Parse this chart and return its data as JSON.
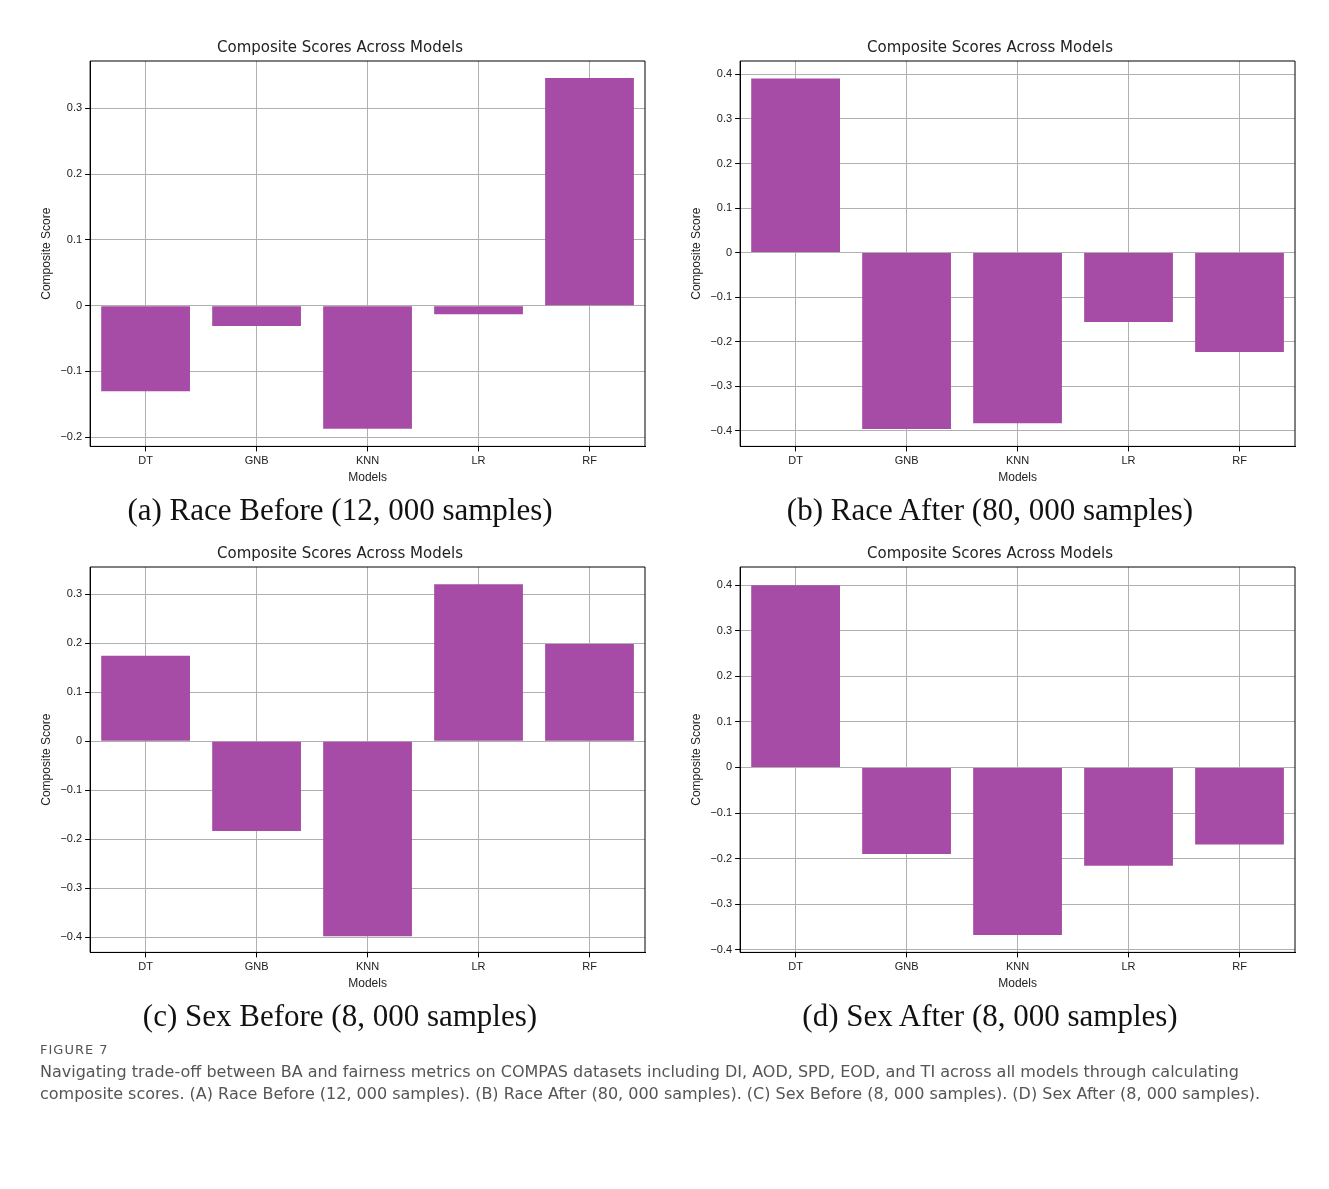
{
  "chart_data": [
    {
      "type": "bar",
      "title": "Composite Scores Across Models",
      "xlabel": "Models",
      "ylabel": "Composite Score",
      "categories": [
        "DT",
        "GNB",
        "KNN",
        "LR",
        "RF"
      ],
      "values": [
        -0.13,
        -0.031,
        -0.187,
        -0.013,
        0.346
      ],
      "color": "#a64ca6",
      "ylim": [
        -0.214,
        0.372
      ],
      "yticks": [
        {
          "value": -0.2,
          "label": "−0.2"
        },
        {
          "value": -0.1,
          "label": "−0.1"
        },
        0.0,
        0.1,
        0.2,
        0.3
      ],
      "grid": true,
      "annotations": [
        "(a) Race Before (12, 000 samples)"
      ]
    },
    {
      "type": "bar",
      "title": "Composite Scores Across Models",
      "xlabel": "Models",
      "ylabel": "Composite Score",
      "categories": [
        "DT",
        "GNB",
        "KNN",
        "LR",
        "RF"
      ],
      "values": [
        0.391,
        -0.396,
        -0.383,
        -0.156,
        -0.223
      ],
      "color": "#a64ca6",
      "ylim": [
        -0.435,
        0.43
      ],
      "yticks": [
        {
          "value": -0.4,
          "label": "−0.4"
        },
        {
          "value": -0.3,
          "label": "−0.3"
        },
        {
          "value": -0.2,
          "label": "−0.2"
        },
        {
          "value": -0.1,
          "label": "−0.1"
        },
        0.0,
        0.1,
        0.2,
        0.3,
        0.4
      ],
      "grid": true,
      "annotations": [
        "(b) Race After (80, 000 samples)"
      ]
    },
    {
      "type": "bar",
      "title": "Composite Scores Across Models",
      "xlabel": "Models",
      "ylabel": "Composite Score",
      "categories": [
        "DT",
        "GNB",
        "KNN",
        "LR",
        "RF"
      ],
      "values": [
        0.175,
        -0.183,
        -0.398,
        0.321,
        0.199
      ],
      "color": "#a64ca6",
      "ylim": [
        -0.431,
        0.356
      ],
      "yticks": [
        {
          "value": -0.4,
          "label": "−0.4"
        },
        {
          "value": -0.3,
          "label": "−0.3"
        },
        {
          "value": -0.2,
          "label": "−0.2"
        },
        {
          "value": -0.1,
          "label": "−0.1"
        },
        0.0,
        0.1,
        0.2,
        0.3
      ],
      "grid": true,
      "annotations": [
        "(c) Sex Before (8, 000 samples)"
      ]
    },
    {
      "type": "bar",
      "title": "Composite Scores Across Models",
      "xlabel": "Models",
      "ylabel": "Composite Score",
      "categories": [
        "DT",
        "GNB",
        "KNN",
        "LR",
        "RF"
      ],
      "values": [
        0.4,
        -0.19,
        -0.368,
        -0.216,
        -0.169
      ],
      "color": "#a64ca6",
      "ylim": [
        -0.406,
        0.44
      ],
      "yticks": [
        {
          "value": -0.4,
          "label": "−0.4"
        },
        {
          "value": -0.3,
          "label": "−0.3"
        },
        {
          "value": -0.2,
          "label": "−0.2"
        },
        {
          "value": -0.1,
          "label": "−0.1"
        },
        0.0,
        0.1,
        0.2,
        0.3,
        0.4
      ],
      "grid": true,
      "annotations": [
        "(d) Sex After (8, 000 samples)",
        "FIGURE 7",
        "Navigating trade-off between BA and fairness metrics on COMPAS datasets including DI, AOD, SPD, EOD, and TI across all models through calculating composite scores. (A) Race Before (12, 000 samples). (B) Race After (80, 000 samples). (C) Sex Before (8, 000 samples). (D) Sex After (8, 000 samples)."
      ]
    }
  ]
}
